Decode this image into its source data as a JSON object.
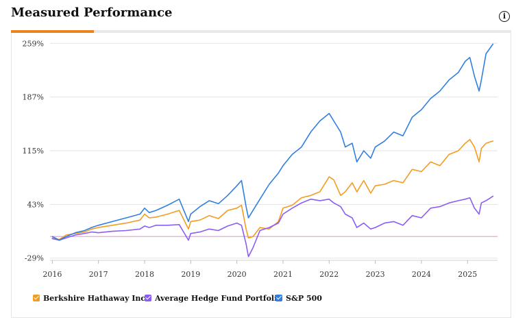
{
  "header": {
    "title": "Measured Performance",
    "info_icon_glyph": "i"
  },
  "colors": {
    "accent": "#e8831d",
    "berkshire": "#f39c1f",
    "hedge": "#8b5cf6",
    "sp500": "#2f7fe0",
    "baseline": "#e79ac6"
  },
  "chart_data": {
    "type": "line",
    "title": "Measured Performance",
    "y_unit": "%",
    "ylim": [
      -32,
      262
    ],
    "y_ticks": [
      259,
      187,
      115,
      43,
      -29
    ],
    "y_tick_labels": [
      "259%",
      "187%",
      "115%",
      "43%",
      "-29%"
    ],
    "xlim": [
      2015.95,
      2025.65
    ],
    "x_ticks": [
      2016,
      2017,
      2018,
      2019,
      2020,
      2021,
      2022,
      2023,
      2024,
      2025
    ],
    "x_tick_labels": [
      "2016",
      "2017",
      "2018",
      "2019",
      "2020",
      "2021",
      "2022",
      "2023",
      "2024",
      "2025"
    ],
    "baseline": 0,
    "grid": true,
    "legend_position": "bottom",
    "series": [
      {
        "name": "Berkshire Hathaway Inc",
        "color": "#f39c1f",
        "x": [
          2016.0,
          2016.15,
          2016.3,
          2016.5,
          2016.7,
          2016.85,
          2017.0,
          2017.3,
          2017.6,
          2017.9,
          2018.0,
          2018.1,
          2018.25,
          2018.5,
          2018.75,
          2018.95,
          2019.0,
          2019.2,
          2019.4,
          2019.6,
          2019.8,
          2020.0,
          2020.1,
          2020.2,
          2020.25,
          2020.35,
          2020.5,
          2020.7,
          2020.9,
          2021.0,
          2021.2,
          2021.4,
          2021.6,
          2021.8,
          2022.0,
          2022.1,
          2022.25,
          2022.35,
          2022.5,
          2022.6,
          2022.75,
          2022.9,
          2023.0,
          2023.2,
          2023.4,
          2023.6,
          2023.8,
          2024.0,
          2024.2,
          2024.4,
          2024.6,
          2024.8,
          2024.95,
          2025.05,
          2025.15,
          2025.25,
          2025.3,
          2025.4,
          2025.55
        ],
        "values": [
          -2,
          -4,
          2,
          4,
          6,
          10,
          12,
          15,
          18,
          22,
          30,
          25,
          26,
          30,
          35,
          10,
          20,
          22,
          28,
          24,
          35,
          38,
          42,
          10,
          -2,
          0,
          12,
          10,
          20,
          38,
          42,
          52,
          55,
          60,
          80,
          76,
          55,
          60,
          72,
          60,
          75,
          58,
          68,
          70,
          75,
          72,
          90,
          87,
          100,
          95,
          110,
          115,
          125,
          130,
          120,
          100,
          118,
          125,
          128
        ]
      },
      {
        "name": "Average Hedge Fund Portfolio",
        "color": "#8b5cf6",
        "x": [
          2016.0,
          2016.15,
          2016.3,
          2016.5,
          2016.7,
          2016.85,
          2017.0,
          2017.3,
          2017.6,
          2017.9,
          2018.0,
          2018.1,
          2018.25,
          2018.5,
          2018.75,
          2018.95,
          2019.0,
          2019.2,
          2019.4,
          2019.6,
          2019.8,
          2020.0,
          2020.1,
          2020.2,
          2020.25,
          2020.35,
          2020.5,
          2020.7,
          2020.9,
          2021.0,
          2021.2,
          2021.4,
          2021.6,
          2021.8,
          2022.0,
          2022.1,
          2022.25,
          2022.35,
          2022.5,
          2022.6,
          2022.75,
          2022.9,
          2023.0,
          2023.2,
          2023.4,
          2023.6,
          2023.8,
          2024.0,
          2024.2,
          2024.4,
          2024.6,
          2024.8,
          2024.95,
          2025.05,
          2025.15,
          2025.25,
          2025.3,
          2025.4,
          2025.55
        ],
        "values": [
          -3,
          -5,
          -2,
          2,
          4,
          6,
          5,
          7,
          8,
          10,
          14,
          12,
          15,
          15,
          16,
          -5,
          4,
          6,
          10,
          8,
          14,
          18,
          15,
          -10,
          -27,
          -15,
          8,
          12,
          18,
          30,
          38,
          45,
          50,
          48,
          50,
          45,
          40,
          30,
          25,
          12,
          18,
          10,
          12,
          18,
          20,
          15,
          28,
          25,
          38,
          40,
          45,
          48,
          50,
          52,
          38,
          30,
          45,
          48,
          54
        ]
      },
      {
        "name": "S&P 500",
        "color": "#2f7fe0",
        "x": [
          2016.0,
          2016.15,
          2016.3,
          2016.5,
          2016.7,
          2016.85,
          2017.0,
          2017.3,
          2017.6,
          2017.9,
          2018.0,
          2018.1,
          2018.25,
          2018.5,
          2018.75,
          2018.95,
          2019.0,
          2019.2,
          2019.4,
          2019.6,
          2019.8,
          2020.0,
          2020.1,
          2020.2,
          2020.25,
          2020.35,
          2020.5,
          2020.7,
          2020.9,
          2021.0,
          2021.2,
          2021.4,
          2021.6,
          2021.8,
          2022.0,
          2022.1,
          2022.25,
          2022.35,
          2022.5,
          2022.6,
          2022.75,
          2022.9,
          2023.0,
          2023.2,
          2023.4,
          2023.6,
          2023.8,
          2024.0,
          2024.2,
          2024.4,
          2024.6,
          2024.8,
          2024.95,
          2025.05,
          2025.15,
          2025.25,
          2025.3,
          2025.4,
          2025.55
        ],
        "values": [
          0,
          -5,
          0,
          5,
          8,
          12,
          15,
          20,
          25,
          30,
          38,
          32,
          35,
          42,
          50,
          20,
          30,
          40,
          48,
          44,
          55,
          68,
          75,
          40,
          25,
          35,
          50,
          70,
          85,
          95,
          110,
          120,
          140,
          155,
          165,
          155,
          140,
          120,
          125,
          100,
          115,
          105,
          120,
          128,
          140,
          135,
          160,
          170,
          185,
          195,
          210,
          220,
          235,
          240,
          215,
          195,
          210,
          245,
          258
        ]
      }
    ]
  },
  "legend": [
    {
      "label": "Berkshire Hathaway Inc",
      "color": "#f39c1f"
    },
    {
      "label": "Average Hedge Fund Portfolio",
      "color": "#8b5cf6"
    },
    {
      "label": "S&P 500",
      "color": "#2f7fe0"
    }
  ]
}
